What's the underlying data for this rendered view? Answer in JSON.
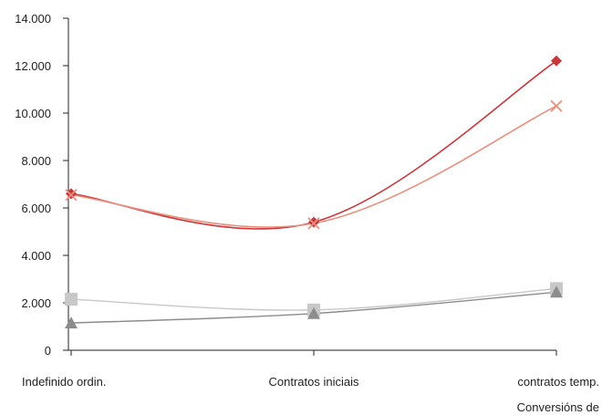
{
  "chart_data": {
    "type": "line",
    "categories": [
      "Indefinido ordin.",
      "Contratos iniciais",
      "contratos temp."
    ],
    "category_sublabels": [
      "",
      "",
      "Conversións de"
    ],
    "y_tick_labels": [
      "0",
      "2.000",
      "4.000",
      "6.000",
      "8.000",
      "10.000",
      "12.000",
      "14.000"
    ],
    "ylim": [
      0,
      14000
    ],
    "grid": false,
    "legend": "none",
    "title": "",
    "xlabel": "",
    "ylabel": "",
    "series": [
      {
        "values": [
          6600,
          5400,
          12200
        ],
        "color": "#c9373b",
        "marker": "diamond"
      },
      {
        "values": [
          6550,
          5350,
          10300
        ],
        "color": "#e88e7d",
        "marker": "x"
      },
      {
        "values": [
          2150,
          1700,
          2600
        ],
        "color": "#c8c8c8",
        "marker": "square"
      },
      {
        "values": [
          1150,
          1550,
          2450
        ],
        "color": "#8c8c8c",
        "marker": "triangle"
      }
    ]
  }
}
